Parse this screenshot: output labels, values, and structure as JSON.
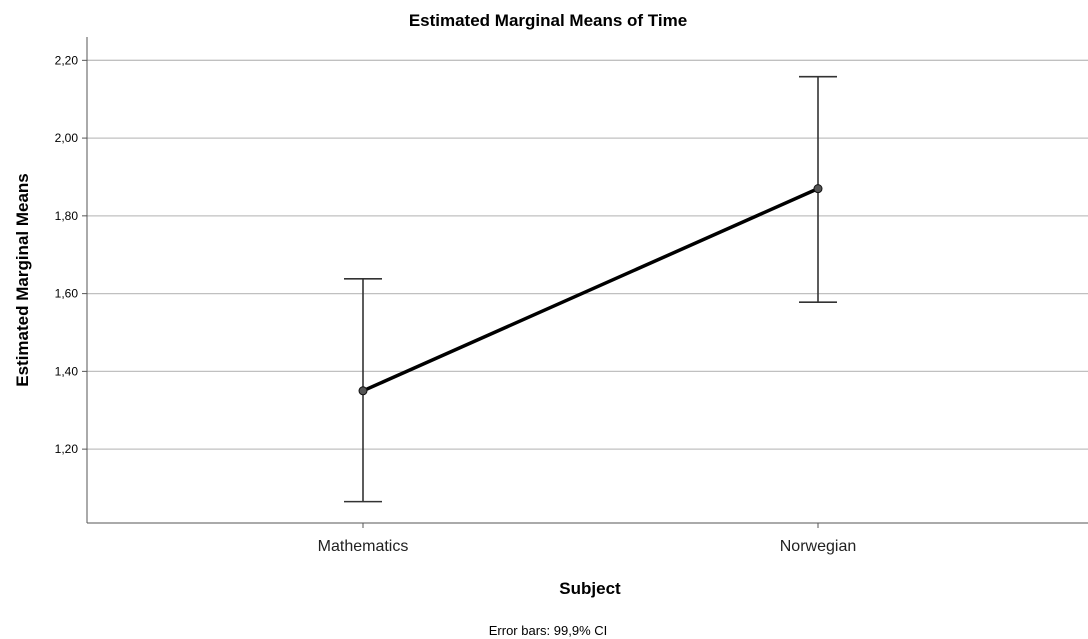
{
  "chart_data": {
    "type": "line",
    "title": "Estimated Marginal Means of Time",
    "xlabel": "Subject",
    "ylabel": "Estimated Marginal Means",
    "categories": [
      "Mathematics",
      "Norwegian"
    ],
    "series": [
      {
        "values": [
          1.35,
          1.87
        ],
        "error_low": [
          1.065,
          1.578
        ],
        "error_high": [
          1.638,
          2.158
        ]
      }
    ],
    "ylim": [
      1.01,
      2.26
    ],
    "yticks": [
      1.2,
      1.4,
      1.6,
      1.8,
      2.0,
      2.2
    ],
    "ytick_labels": [
      "1,20",
      "1,40",
      "1,60",
      "1,80",
      "2,00",
      "2,20"
    ],
    "grid": true,
    "note": "Error bars: 99,9% CI",
    "colors": {
      "line": "#000000",
      "error_bar": "#333333",
      "grid": "#c0c0c0",
      "marker": "#555555"
    }
  }
}
